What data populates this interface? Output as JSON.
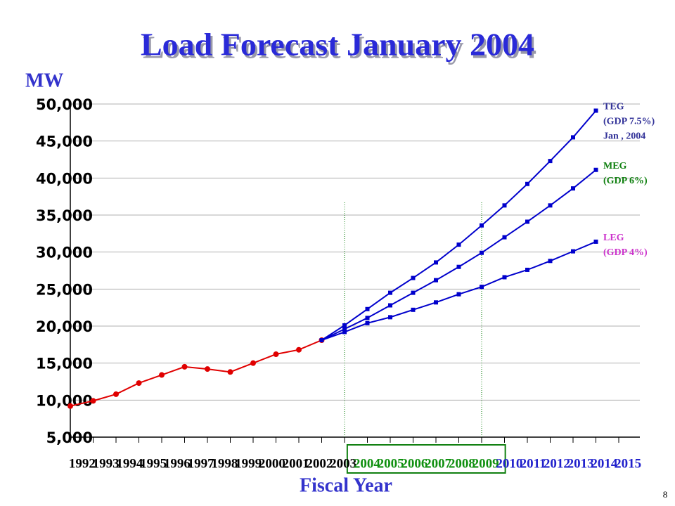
{
  "chart_data": {
    "type": "line",
    "title": "Load Forecast January 2004",
    "y_label": "MW",
    "x_label": "Fiscal Year",
    "page_number": "8",
    "categories": [
      "1992",
      "1993",
      "1994",
      "1995",
      "1996",
      "1997",
      "1998",
      "1999",
      "2000",
      "2001",
      "2002",
      "2003",
      "2004",
      "2005",
      "2006",
      "2007",
      "2008",
      "2009",
      "2010",
      "2011",
      "2012",
      "2013",
      "2014",
      "2015"
    ],
    "category_colors": [
      "#000000",
      "#000000",
      "#000000",
      "#000000",
      "#000000",
      "#000000",
      "#000000",
      "#000000",
      "#000000",
      "#000000",
      "#000000",
      "#000000",
      "#109010",
      "#109010",
      "#109010",
      "#109010",
      "#109010",
      "#109010",
      "#2020cc",
      "#2020cc",
      "#2020cc",
      "#2020cc",
      "#2020cc",
      "#2020cc"
    ],
    "boxed_categories": [
      12,
      17
    ],
    "divider_categories": [
      12,
      18
    ],
    "divider_color": "#108010",
    "ylim": [
      5000,
      50000
    ],
    "yticks": [
      {
        "value": 5000,
        "label": "5,000"
      },
      {
        "value": 10000,
        "label": "10,000"
      },
      {
        "value": 15000,
        "label": "15,000"
      },
      {
        "value": 20000,
        "label": "20,000"
      },
      {
        "value": 25000,
        "label": "25,000"
      },
      {
        "value": 30000,
        "label": "30,000"
      },
      {
        "value": 35000,
        "label": "35,000"
      },
      {
        "value": 40000,
        "label": "40,000"
      },
      {
        "value": 45000,
        "label": "45,000"
      },
      {
        "value": 50000,
        "label": "50,000"
      }
    ],
    "grid": true,
    "series": [
      {
        "color": "#e00000",
        "marker": "circle",
        "values": [
          9200,
          9900,
          10800,
          12300,
          13400,
          14500,
          14200,
          13800,
          15000,
          16200,
          16800,
          18100,
          null,
          null,
          null,
          null,
          null,
          null,
          null,
          null,
          null,
          null,
          null,
          null
        ]
      },
      {
        "name": "TEG",
        "note": [
          "(GDP 7.5%)",
          "Jan , 2004"
        ],
        "label_color": "#333399",
        "color": "#0000cc",
        "marker": "square",
        "values": [
          null,
          null,
          null,
          null,
          null,
          null,
          null,
          null,
          null,
          null,
          null,
          18100,
          20100,
          22300,
          24500,
          26500,
          28600,
          31000,
          33600,
          36300,
          39200,
          42300,
          45500,
          49100
        ]
      },
      {
        "name": "MEG",
        "note": [
          "(GDP 6%)"
        ],
        "label_color": "#108010",
        "color": "#0000cc",
        "marker": "square",
        "values": [
          null,
          null,
          null,
          null,
          null,
          null,
          null,
          null,
          null,
          null,
          null,
          18100,
          19600,
          21100,
          22800,
          24500,
          26200,
          28000,
          29900,
          32000,
          34100,
          36300,
          38600,
          41100
        ]
      },
      {
        "name": "LEG",
        "note": [
          "(GDP 4%)"
        ],
        "label_color": "#cc33cc",
        "color": "#0000cc",
        "marker": "square",
        "values": [
          null,
          null,
          null,
          null,
          null,
          null,
          null,
          null,
          null,
          null,
          null,
          18100,
          19200,
          20400,
          21200,
          22200,
          23200,
          24300,
          25300,
          26600,
          27600,
          28800,
          30100,
          31400
        ]
      }
    ]
  }
}
